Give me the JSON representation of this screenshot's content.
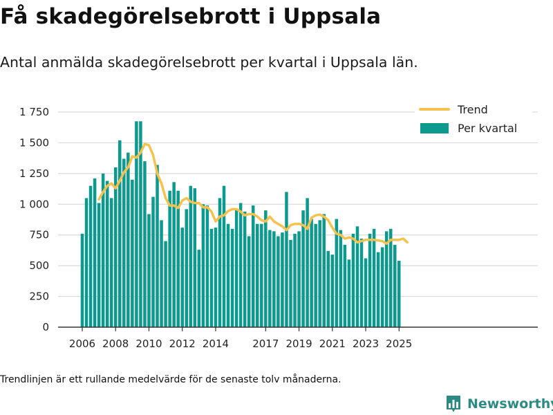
{
  "header": {
    "title": "Få skadegörelsebrott i Uppsala",
    "subtitle": "Antal anmälda skadegörelsebrott per kvartal i Uppsala län."
  },
  "footnote": "Trendlinjen är ett rullande medelvärde för de senaste tolv månaderna.",
  "brand": {
    "name": "Newsworthy",
    "icon": "bar-chart-logo-icon"
  },
  "colors": {
    "bars": "#0d9a8e",
    "trend": "#f5c14f",
    "grid": "#d9d9d9",
    "axis": "#333333",
    "brand": "#2c8a82"
  },
  "chart_data": {
    "type": "bar",
    "title": "Få skadegörelsebrott i Uppsala",
    "x_start": "2006-Q1",
    "ylim": [
      0,
      1750
    ],
    "yticks": [
      0,
      250,
      500,
      750,
      1000,
      1250,
      1500,
      1750
    ],
    "ytick_labels": [
      "0",
      "250",
      "500",
      "750",
      "1 000",
      "1 250",
      "1 500",
      "1 750"
    ],
    "xticks": [
      {
        "label": "2006",
        "quarter": "2006-Q1"
      },
      {
        "label": "2008",
        "quarter": "2008-Q1"
      },
      {
        "label": "2010",
        "quarter": "2010-Q1"
      },
      {
        "label": "2012",
        "quarter": "2012-Q1"
      },
      {
        "label": "2014",
        "quarter": "2014-Q1"
      },
      {
        "label": "2017",
        "quarter": "2017-Q1"
      },
      {
        "label": "2019",
        "quarter": "2019-Q1"
      },
      {
        "label": "2021",
        "quarter": "2021-Q1"
      },
      {
        "label": "2023",
        "quarter": "2023-Q1"
      },
      {
        "label": "2025",
        "quarter": "2025-Q1"
      }
    ],
    "grid": true,
    "legend_position": "top-right",
    "series": [
      {
        "name": "Per kvartal",
        "kind": "bar",
        "values": [
          760,
          1050,
          1150,
          1210,
          1010,
          1250,
          1190,
          1050,
          1300,
          1520,
          1370,
          1420,
          1200,
          1675,
          1675,
          1350,
          920,
          1060,
          1320,
          870,
          700,
          1110,
          1180,
          1110,
          810,
          960,
          1150,
          1130,
          630,
          1000,
          990,
          800,
          810,
          1050,
          1150,
          840,
          800,
          960,
          1010,
          940,
          740,
          990,
          840,
          840,
          950,
          790,
          780,
          740,
          770,
          1100,
          710,
          760,
          780,
          950,
          1050,
          880,
          840,
          870,
          920,
          620,
          590,
          880,
          790,
          670,
          550,
          760,
          820,
          720,
          560,
          760,
          800,
          610,
          650,
          780,
          800,
          670,
          540
        ]
      },
      {
        "name": "Trend",
        "kind": "line",
        "start_index": 4,
        "values": [
          1040,
          1100,
          1150,
          1170,
          1130,
          1190,
          1260,
          1300,
          1390,
          1380,
          1420,
          1490,
          1480,
          1400,
          1250,
          1170,
          1050,
          990,
          990,
          970,
          1030,
          1050,
          1020,
          1010,
          1010,
          975,
          975,
          940,
          860,
          900,
          910,
          945,
          960,
          960,
          940,
          910,
          920,
          920,
          900,
          870,
          860,
          900,
          860,
          840,
          820,
          790,
          830,
          840,
          840,
          830,
          800,
          890,
          910,
          915,
          900,
          870,
          810,
          760,
          750,
          720,
          730,
          720,
          690,
          700,
          710,
          710,
          710,
          705,
          700,
          680,
          710,
          710,
          710,
          720,
          690
        ]
      }
    ]
  }
}
